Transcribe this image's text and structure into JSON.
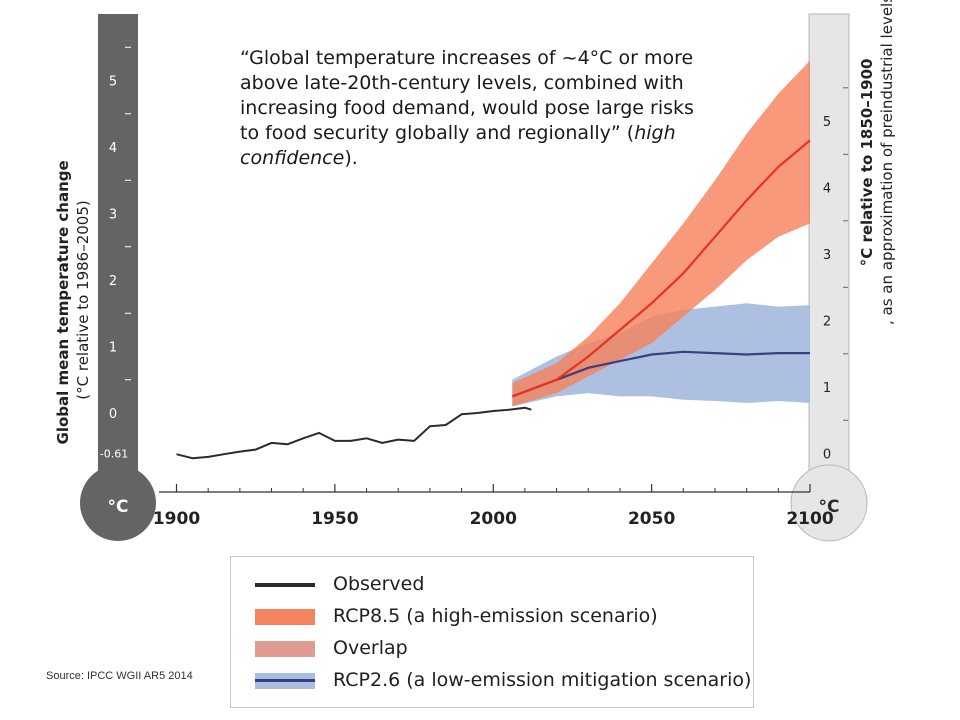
{
  "quote": {
    "text": "“Global temperature increases of ~4°C or more above late-20th-century levels, combined with increasing food demand, would pose large risks to food security globally and regionally” (",
    "confidence": "high confidence",
    "end": ")."
  },
  "source": "Source: IPCC WGII AR5 2014",
  "colors": {
    "observed": "#2b2b2b",
    "rcp85_line": "#e8321e",
    "rcp85_band": "#f5835d",
    "overlap": "#e09a92",
    "rcp26_line": "#3c3d82",
    "rcp26_band": "#a9bde0",
    "left_thermometer": "#646464",
    "right_thermometer": "#e6e6e6"
  },
  "chart_data": {
    "type": "line",
    "xlabel": "",
    "xlim": [
      1897,
      2100
    ],
    "x_ticks": [
      "1900",
      "1950",
      "2000",
      "2050",
      "2100"
    ],
    "left_axis": {
      "label": "Global mean temperature change",
      "sublabel": "(°C relative to 1986–2005)",
      "ylim": [
        -0.61,
        5.5
      ],
      "ticks": [
        "0",
        "1",
        "2",
        "3",
        "4",
        "5"
      ],
      "marker": "-0.61",
      "unit": "°C"
    },
    "right_axis": {
      "label": "°C relative to 1850–1900",
      "sublabel": ", as an approximation of preindustrial levels",
      "ticks": [
        "0",
        "1",
        "2",
        "3",
        "4",
        "5"
      ],
      "unit": "°C"
    },
    "series": [
      {
        "name": "Observed",
        "x": [
          1900,
          1905,
          1910,
          1915,
          1920,
          1925,
          1930,
          1935,
          1940,
          1945,
          1950,
          1955,
          1960,
          1965,
          1970,
          1975,
          1980,
          1985,
          1990,
          1995,
          2000,
          2005,
          2010,
          2012
        ],
        "y": [
          -0.62,
          -0.68,
          -0.66,
          -0.62,
          -0.58,
          -0.55,
          -0.45,
          -0.47,
          -0.38,
          -0.3,
          -0.42,
          -0.42,
          -0.38,
          -0.45,
          -0.4,
          -0.42,
          -0.2,
          -0.18,
          -0.02,
          0.0,
          0.03,
          0.05,
          0.08,
          0.05
        ]
      },
      {
        "name": "RCP8.5 (a high-emission scenario)",
        "x": [
          2006,
          2020,
          2030,
          2040,
          2050,
          2060,
          2070,
          2080,
          2090,
          2100
        ],
        "y": [
          0.25,
          0.5,
          0.85,
          1.25,
          1.65,
          2.1,
          2.65,
          3.2,
          3.7,
          4.1
        ],
        "low": [
          0.1,
          0.3,
          0.55,
          0.8,
          1.05,
          1.45,
          1.85,
          2.3,
          2.65,
          2.85
        ],
        "high": [
          0.45,
          0.75,
          1.15,
          1.65,
          2.25,
          2.85,
          3.5,
          4.2,
          4.8,
          5.3
        ]
      },
      {
        "name": "RCP2.6 (a low-emission mitigation scenario)",
        "x": [
          2006,
          2020,
          2030,
          2040,
          2050,
          2060,
          2070,
          2080,
          2090,
          2100
        ],
        "y": [
          0.25,
          0.5,
          0.68,
          0.78,
          0.88,
          0.92,
          0.9,
          0.88,
          0.9,
          0.9
        ],
        "low": [
          0.1,
          0.25,
          0.3,
          0.25,
          0.25,
          0.2,
          0.18,
          0.15,
          0.18,
          0.15
        ],
        "high": [
          0.5,
          0.85,
          1.05,
          1.2,
          1.45,
          1.55,
          1.6,
          1.65,
          1.6,
          1.62
        ]
      }
    ],
    "legend": [
      "Observed",
      "RCP8.5 (a high-emission scenario)",
      "Overlap",
      "RCP2.6 (a low-emission mitigation scenario)"
    ]
  }
}
